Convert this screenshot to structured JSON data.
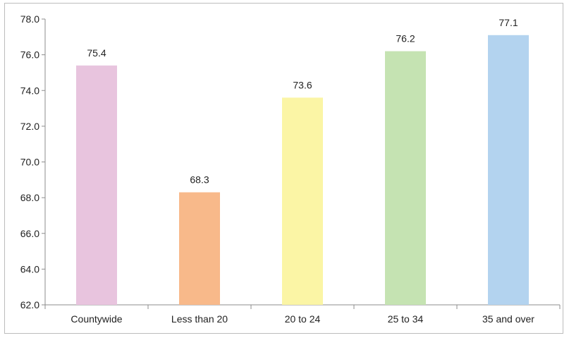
{
  "chart_data": {
    "type": "bar",
    "title": "",
    "xlabel": "",
    "ylabel": "",
    "categories": [
      "Countywide",
      "Less than 20",
      "20 to 24",
      "25 to 34",
      "35 and over"
    ],
    "values": [
      75.4,
      68.3,
      73.6,
      76.2,
      77.1
    ],
    "value_labels": [
      "75.4",
      "68.3",
      "73.6",
      "76.2",
      "77.1"
    ],
    "colors": [
      "#e8c4de",
      "#f8b98a",
      "#fbf5a5",
      "#c5e3b2",
      "#b3d3ef"
    ],
    "ylim": [
      62.0,
      78.0
    ],
    "yticks": [
      "62.0",
      "64.0",
      "66.0",
      "68.0",
      "70.0",
      "72.0",
      "74.0",
      "76.0",
      "78.0"
    ],
    "grid": false,
    "legend": "none"
  }
}
